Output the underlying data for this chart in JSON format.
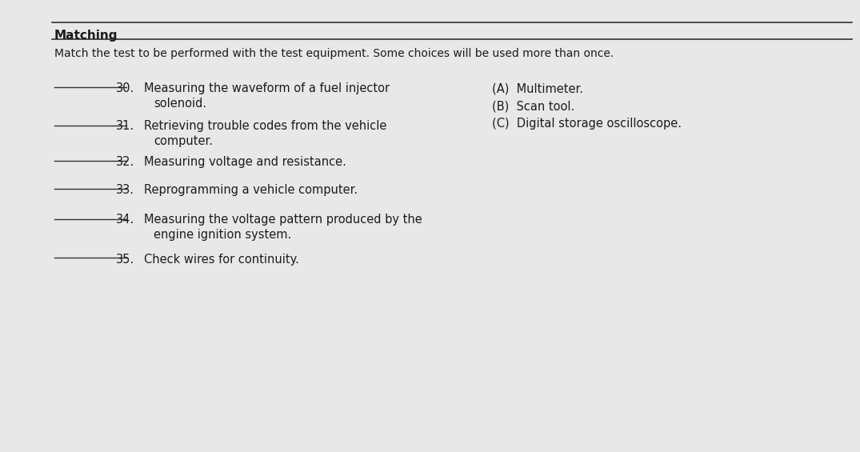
{
  "title": "Matching",
  "instruction": "Match the test to be performed with the test equipment. Some choices will be used more than once.",
  "choices": [
    "(A)  Multimeter.",
    "(B)  Scan tool.",
    "(C)  Digital storage oscilloscope."
  ],
  "questions": [
    {
      "num": "30.",
      "line1": "Measuring the waveform of a fuel injector",
      "line2": "solenoid."
    },
    {
      "num": "31.",
      "line1": "Retrieving trouble codes from the vehicle",
      "line2": "computer."
    },
    {
      "num": "32.",
      "line1": "Measuring voltage and resistance.",
      "line2": ""
    },
    {
      "num": "33.",
      "line1": "Reprogramming a vehicle computer.",
      "line2": ""
    },
    {
      "num": "34.",
      "line1": "Measuring the voltage pattern produced by the",
      "line2": "engine ignition system."
    },
    {
      "num": "35.",
      "line1": "Check wires for continuity.",
      "line2": ""
    }
  ],
  "bg_color": "#e8e8e8",
  "text_color": "#1c1c1c",
  "title_fontsize": 11,
  "instruction_fontsize": 10,
  "question_fontsize": 10.5,
  "choice_fontsize": 10.5,
  "line_color": "#333333"
}
